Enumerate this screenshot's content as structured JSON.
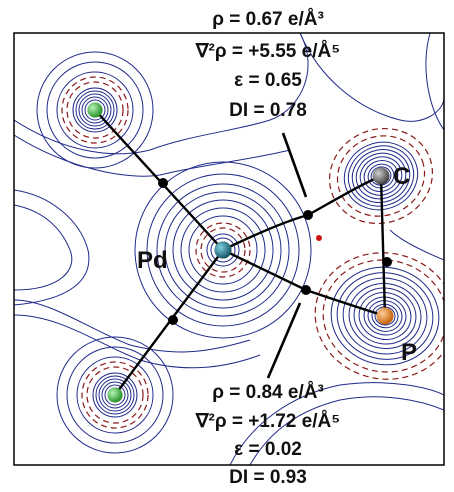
{
  "labels": {
    "pd": "Pd",
    "c": "C",
    "p": "P"
  },
  "bcp_top": {
    "rho": "ρ = 0.67 e/Å³",
    "laplacian": "∇²ρ = +5.55 e/Å⁵",
    "ellipticity": "ε = 0.65",
    "di": "DI = 0.78"
  },
  "bcp_bottom": {
    "rho": "ρ = 0.84 e/Å³",
    "laplacian": "∇²ρ = +1.72 e/Å⁵",
    "ellipticity": "ε = 0.02",
    "di": "DI = 0.93"
  },
  "colors": {
    "contour_solid": "#1f2a8a",
    "contour_dashed": "#8b1a1a",
    "bond_path": "#000000",
    "pd_atom": "#1b6f86",
    "cl_atom": "#3fc43f",
    "c_atom": "#5a5a5a",
    "p_atom": "#f07f18",
    "rcp": "#cc1111"
  }
}
